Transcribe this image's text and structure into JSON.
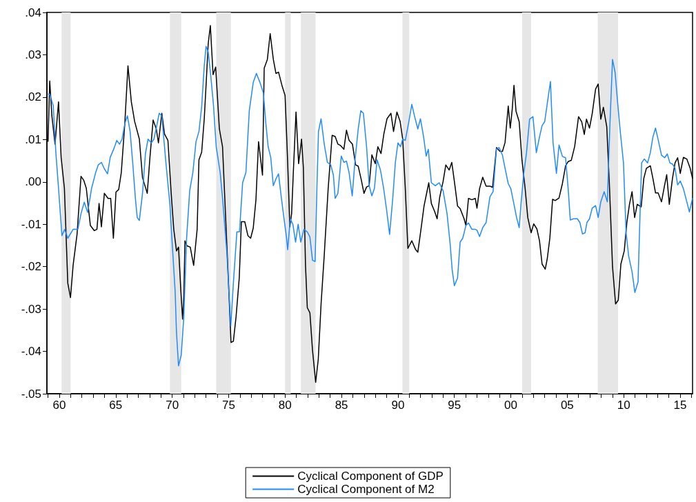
{
  "chart_data": {
    "type": "line",
    "legend": "bottom",
    "xlim": [
      1958.9,
      2016.1
    ],
    "xticks": [
      {
        "value": 1959,
        "label": null
      },
      {
        "value": 1960,
        "label": "60"
      },
      {
        "value": 1961,
        "label": null
      },
      {
        "value": 1962,
        "label": null
      },
      {
        "value": 1963,
        "label": null
      },
      {
        "value": 1964,
        "label": null
      },
      {
        "value": 1965,
        "label": "65"
      },
      {
        "value": 1966,
        "label": null
      },
      {
        "value": 1967,
        "label": null
      },
      {
        "value": 1968,
        "label": null
      },
      {
        "value": 1969,
        "label": null
      },
      {
        "value": 1970,
        "label": "70"
      },
      {
        "value": 1971,
        "label": null
      },
      {
        "value": 1972,
        "label": null
      },
      {
        "value": 1973,
        "label": null
      },
      {
        "value": 1974,
        "label": null
      },
      {
        "value": 1975,
        "label": "75"
      },
      {
        "value": 1976,
        "label": null
      },
      {
        "value": 1977,
        "label": null
      },
      {
        "value": 1978,
        "label": null
      },
      {
        "value": 1979,
        "label": null
      },
      {
        "value": 1980,
        "label": "80"
      },
      {
        "value": 1981,
        "label": null
      },
      {
        "value": 1982,
        "label": null
      },
      {
        "value": 1983,
        "label": null
      },
      {
        "value": 1984,
        "label": null
      },
      {
        "value": 1985,
        "label": "85"
      },
      {
        "value": 1986,
        "label": null
      },
      {
        "value": 1987,
        "label": null
      },
      {
        "value": 1988,
        "label": null
      },
      {
        "value": 1989,
        "label": null
      },
      {
        "value": 1990,
        "label": "90"
      },
      {
        "value": 1991,
        "label": null
      },
      {
        "value": 1992,
        "label": null
      },
      {
        "value": 1993,
        "label": null
      },
      {
        "value": 1994,
        "label": null
      },
      {
        "value": 1995,
        "label": "95"
      },
      {
        "value": 1996,
        "label": null
      },
      {
        "value": 1997,
        "label": null
      },
      {
        "value": 1998,
        "label": null
      },
      {
        "value": 1999,
        "label": null
      },
      {
        "value": 2000,
        "label": "00"
      },
      {
        "value": 2001,
        "label": null
      },
      {
        "value": 2002,
        "label": null
      },
      {
        "value": 2003,
        "label": null
      },
      {
        "value": 2004,
        "label": null
      },
      {
        "value": 2005,
        "label": "05"
      },
      {
        "value": 2006,
        "label": null
      },
      {
        "value": 2007,
        "label": null
      },
      {
        "value": 2008,
        "label": null
      },
      {
        "value": 2009,
        "label": null
      },
      {
        "value": 2010,
        "label": "10"
      },
      {
        "value": 2011,
        "label": null
      },
      {
        "value": 2012,
        "label": null
      },
      {
        "value": 2013,
        "label": null
      },
      {
        "value": 2014,
        "label": null
      },
      {
        "value": 2015,
        "label": "15"
      },
      {
        "value": 2016,
        "label": null
      }
    ],
    "ylim": [
      -0.05,
      0.04
    ],
    "yticks": [
      {
        "value": -0.05,
        "label": "-.05"
      },
      {
        "value": -0.04,
        "label": "-.04"
      },
      {
        "value": -0.03,
        "label": "-.03"
      },
      {
        "value": -0.02,
        "label": "-.02"
      },
      {
        "value": -0.01,
        "label": "-.01"
      },
      {
        "value": 0,
        "label": ".00"
      },
      {
        "value": 0.01,
        "label": ".01"
      },
      {
        "value": 0.02,
        "label": ".02"
      },
      {
        "value": 0.03,
        "label": ".03"
      },
      {
        "value": 0.04,
        "label": ".04"
      }
    ],
    "bands": [
      {
        "axis": "x",
        "from": 1960.2,
        "to": 1961.0,
        "color": "#e6e6e6"
      },
      {
        "axis": "x",
        "from": 1969.8,
        "to": 1970.8,
        "color": "#e6e6e6"
      },
      {
        "axis": "x",
        "from": 1973.9,
        "to": 1975.2,
        "color": "#e6e6e6"
      },
      {
        "axis": "x",
        "from": 1980.0,
        "to": 1980.5,
        "color": "#e6e6e6"
      },
      {
        "axis": "x",
        "from": 1981.4,
        "to": 1982.7,
        "color": "#e6e6e6"
      },
      {
        "axis": "x",
        "from": 1990.4,
        "to": 1991.0,
        "color": "#e6e6e6"
      },
      {
        "axis": "x",
        "from": 2001.0,
        "to": 2001.8,
        "color": "#e6e6e6"
      },
      {
        "axis": "x",
        "from": 2007.7,
        "to": 2009.5,
        "color": "#e6e6e6"
      }
    ],
    "series": [
      {
        "name": "Cyclical Component of GDP",
        "color": "#000000",
        "x": [
          1959.0,
          1959.15,
          1959.34,
          1959.62,
          1959.93,
          1960.16,
          1960.45,
          1960.75,
          1960.99,
          1961.22,
          1961.57,
          1961.92,
          1962.16,
          1962.39,
          1962.75,
          1963.1,
          1963.33,
          1963.52,
          1963.73,
          1963.99,
          1964.32,
          1964.55,
          1964.79,
          1965.02,
          1965.26,
          1965.49,
          1965.8,
          1966.08,
          1966.38,
          1966.67,
          1967.09,
          1967.37,
          1967.79,
          1968.03,
          1968.31,
          1968.59,
          1968.78,
          1969.08,
          1969.32,
          1969.62,
          1969.91,
          1970.14,
          1970.38,
          1970.56,
          1970.77,
          1970.92,
          1971.03,
          1971.13,
          1971.31,
          1971.6,
          1971.9,
          1972.21,
          1972.37,
          1972.61,
          1972.84,
          1973.0,
          1973.19,
          1973.38,
          1973.62,
          1973.85,
          1974.18,
          1974.46,
          1974.72,
          1974.98,
          1975.21,
          1975.42,
          1975.66,
          1975.94,
          1976.13,
          1976.43,
          1976.71,
          1976.95,
          1977.18,
          1977.42,
          1977.65,
          1978.0,
          1978.15,
          1978.43,
          1978.68,
          1978.96,
          1979.19,
          1979.42,
          1979.72,
          1980.0,
          1980.23,
          1980.42,
          1980.58,
          1980.74,
          1980.97,
          1981.2,
          1981.46,
          1981.62,
          1981.81,
          1981.97,
          1982.2,
          1982.43,
          1982.71,
          1982.94,
          1983.19,
          1983.47,
          1983.82,
          1984.17,
          1984.44,
          1984.68,
          1984.91,
          1985.21,
          1985.44,
          1985.67,
          1985.97,
          1986.25,
          1986.48,
          1986.76,
          1986.99,
          1987.22,
          1987.45,
          1987.69,
          1987.99,
          1988.22,
          1988.5,
          1988.75,
          1989.03,
          1989.38,
          1989.61,
          1989.91,
          1990.19,
          1990.42,
          1990.65,
          1990.88,
          1991.23,
          1991.57,
          1991.76,
          1992.04,
          1992.31,
          1992.73,
          1992.96,
          1993.24,
          1993.47,
          1993.7,
          1994.0,
          1994.24,
          1994.54,
          1994.77,
          1995.05,
          1995.28,
          1995.51,
          1995.86,
          1996.02,
          1996.25,
          1996.55,
          1996.85,
          1997.0,
          1997.23,
          1997.51,
          1997.81,
          1998.15,
          1998.38,
          1998.73,
          1999.03,
          1999.26,
          1999.49,
          1999.77,
          1999.95,
          2000.12,
          2000.28,
          2000.46,
          2000.74,
          2000.99,
          2001.27,
          2001.5,
          2001.8,
          2002.03,
          2002.31,
          2002.54,
          2002.77,
          2003.05,
          2003.23,
          2003.46,
          2003.7,
          2003.93,
          2004.27,
          2004.57,
          2004.85,
          2005.08,
          2005.36,
          2005.66,
          2006.0,
          2006.28,
          2006.51,
          2006.7,
          2006.97,
          2007.21,
          2007.51,
          2007.74,
          2007.97,
          2008.2,
          2008.5,
          2008.73,
          2009.01,
          2009.28,
          2009.52,
          2009.75,
          2010.05,
          2010.28,
          2010.51,
          2010.74,
          2010.97,
          2011.2,
          2011.55,
          2011.78,
          2012.01,
          2012.36,
          2012.59,
          2012.82,
          2013.05,
          2013.35,
          2013.63,
          2013.81,
          2014.04,
          2014.32,
          2014.55,
          2014.78,
          2015.01,
          2015.29,
          2015.59,
          2015.89,
          2016.1
        ],
        "values": [
          0.0095,
          0.0238,
          0.0156,
          0.0089,
          0.0189,
          0.0058,
          -0.0015,
          -0.0239,
          -0.0273,
          -0.0197,
          -0.0124,
          0.0013,
          0.0004,
          -0.0015,
          -0.0103,
          -0.0115,
          -0.0112,
          -0.0051,
          -0.0106,
          -0.0027,
          -0.0039,
          -0.0039,
          -0.0133,
          -0.0024,
          -0.0018,
          0.0022,
          0.0137,
          0.0274,
          0.0189,
          0.0143,
          0.0101,
          0.001,
          -0.0027,
          0.0058,
          0.0146,
          0.0125,
          0.0092,
          0.0162,
          0.0113,
          0.0098,
          -0.0027,
          -0.0112,
          -0.0163,
          -0.0154,
          -0.0258,
          -0.0324,
          -0.027,
          -0.0139,
          -0.0151,
          -0.0154,
          -0.0197,
          -0.0112,
          0.0052,
          0.007,
          0.0149,
          0.0228,
          0.0326,
          0.0369,
          0.0253,
          0.0271,
          0.0125,
          0.0083,
          -0.0075,
          -0.0233,
          -0.0379,
          -0.0376,
          -0.0318,
          -0.0227,
          -0.0094,
          -0.0094,
          -0.0127,
          -0.0133,
          -0.0109,
          -0.0042,
          0.0095,
          0.0016,
          0.0268,
          0.0289,
          0.035,
          0.0289,
          0.0256,
          0.0259,
          0.0228,
          0.0204,
          0.0046,
          -0.0106,
          -0.0075,
          0.0028,
          0.0165,
          0.0043,
          0.0101,
          0.0034,
          -0.0197,
          -0.0297,
          -0.0309,
          -0.0397,
          -0.0473,
          -0.0419,
          -0.0288,
          -0.0173,
          -0.0015,
          0.011,
          0.0107,
          0.0089,
          0.0086,
          0.0077,
          0.0122,
          0.0098,
          0.0089,
          0.004,
          0.0037,
          0.0004,
          -0.0027,
          -0.0012,
          -0.0009,
          0.0064,
          0.0043,
          0.0083,
          0.0067,
          0.0113,
          0.0149,
          0.0162,
          0.0119,
          0.0165,
          0.0143,
          0.0101,
          -0.0015,
          -0.0157,
          -0.0139,
          -0.016,
          -0.0166,
          -0.0112,
          -0.0057,
          -0.0002,
          -0.0051,
          -0.0069,
          -0.0087,
          -0.0036,
          0.0001,
          0.004,
          0.0028,
          0.0046,
          -0.0009,
          -0.0057,
          -0.0063,
          -0.0087,
          -0.0103,
          -0.0039,
          -0.0042,
          -0.0039,
          -0.0062,
          -0.0016,
          0.0011,
          -0.001,
          -0.001,
          -0.0013,
          0.0081,
          0.0072,
          0.0072,
          0.0093,
          0.0179,
          0.0127,
          0.017,
          0.0228,
          0.0167,
          0.0142,
          0.0051,
          -0.0016,
          -0.0084,
          -0.012,
          -0.0099,
          -0.0111,
          -0.0139,
          -0.0194,
          -0.0206,
          -0.0181,
          -0.0132,
          -0.0041,
          -0.0044,
          -0.0038,
          -0.0004,
          0.0038,
          0.0048,
          0.0051,
          0.0084,
          0.0154,
          0.0142,
          0.0112,
          0.0148,
          0.0127,
          0.0161,
          0.0219,
          0.0231,
          0.0148,
          0.0176,
          0.013,
          -0.0004,
          -0.02,
          -0.0288,
          -0.0279,
          -0.0194,
          -0.0163,
          -0.0096,
          -0.0053,
          -0.0023,
          -0.0084,
          -0.0053,
          -0.0059,
          0.0008,
          0.0032,
          0.0038,
          0.0008,
          -0.0026,
          -0.0026,
          -0.0047,
          -0.0007,
          0.0017,
          -0.0053,
          0.0008,
          0.0045,
          0.0057,
          0.002,
          0.0058,
          0.0054,
          0.0032,
          0.0008
        ]
      },
      {
        "name": "Cyclical Component of M2",
        "color": "#1f8bff",
        "x": [
          1959.0,
          1959.15,
          1959.46,
          1959.69,
          1959.93,
          1960.23,
          1960.47,
          1960.75,
          1961.22,
          1961.64,
          1961.92,
          1962.21,
          1962.51,
          1962.86,
          1963.22,
          1963.45,
          1963.73,
          1963.99,
          1964.27,
          1964.51,
          1964.86,
          1965.09,
          1965.33,
          1965.56,
          1965.8,
          1966.03,
          1966.27,
          1966.5,
          1966.74,
          1966.9,
          1967.09,
          1967.37,
          1967.63,
          1967.86,
          1968.15,
          1968.38,
          1968.62,
          1968.85,
          1969.08,
          1969.44,
          1969.79,
          1970.02,
          1970.26,
          1970.38,
          1970.56,
          1970.8,
          1971.03,
          1971.27,
          1971.55,
          1971.83,
          1972.11,
          1972.37,
          1972.61,
          1972.84,
          1973.0,
          1973.19,
          1973.43,
          1973.66,
          1973.9,
          1974.25,
          1974.48,
          1974.84,
          1975.02,
          1975.19,
          1975.42,
          1975.73,
          1975.96,
          1976.24,
          1976.53,
          1976.83,
          1977.18,
          1977.46,
          1977.77,
          1978.08,
          1978.3,
          1978.5,
          1978.73,
          1978.96,
          1979.19,
          1979.42,
          1979.65,
          1979.88,
          1980.12,
          1980.23,
          1980.46,
          1980.69,
          1980.93,
          1981.16,
          1981.39,
          1981.67,
          1981.97,
          1982.2,
          1982.43,
          1982.66,
          1982.82,
          1982.96,
          1983.19,
          1983.47,
          1983.75,
          1984.05,
          1984.28,
          1984.44,
          1984.68,
          1984.98,
          1985.21,
          1985.44,
          1985.67,
          1985.95,
          1986.2,
          1986.48,
          1986.71,
          1986.94,
          1987.22,
          1987.45,
          1987.69,
          1987.92,
          1988.15,
          1988.45,
          1988.73,
          1988.98,
          1989.26,
          1989.54,
          1989.77,
          1990.0,
          1990.23,
          1990.42,
          1990.65,
          1990.93,
          1991.23,
          1991.46,
          1991.76,
          1991.99,
          1992.27,
          1992.5,
          1992.69,
          1992.96,
          1993.31,
          1993.66,
          1994.0,
          1994.35,
          1994.63,
          1994.81,
          1995.0,
          1995.28,
          1995.51,
          1995.74,
          1996.02,
          1996.25,
          1996.55,
          1996.85,
          1997.0,
          1997.23,
          1997.51,
          1997.81,
          1998.15,
          1998.43,
          1998.73,
          1998.96,
          1999.26,
          1999.49,
          1999.77,
          2000.0,
          2000.28,
          2000.51,
          2000.74,
          2000.92,
          2001.15,
          2001.39,
          2001.66,
          2001.96,
          2002.26,
          2002.54,
          2002.77,
          2003.0,
          2003.23,
          2003.51,
          2003.74,
          2004.04,
          2004.27,
          2004.57,
          2004.85,
          2005.08,
          2005.27,
          2005.54,
          2005.89,
          2006.12,
          2006.35,
          2006.58,
          2006.74,
          2006.97,
          2007.21,
          2007.51,
          2007.74,
          2007.97,
          2008.27,
          2008.55,
          2008.78,
          2009.01,
          2009.24,
          2009.47,
          2009.7,
          2009.98,
          2010.21,
          2010.44,
          2010.74,
          2010.99,
          2011.27,
          2011.5,
          2011.59,
          2011.82,
          2012.12,
          2012.36,
          2012.59,
          2012.82,
          2013.05,
          2013.35,
          2013.63,
          2013.86,
          2014.09,
          2014.32,
          2014.55,
          2014.78,
          2015.01,
          2015.29,
          2015.59,
          2015.82,
          2016.1
        ],
        "values": [
          0.0207,
          0.0207,
          0.018,
          0.007,
          -0.0015,
          -0.0127,
          -0.0112,
          -0.0133,
          -0.0112,
          -0.0112,
          -0.0075,
          -0.0048,
          -0.0072,
          -0.0015,
          0.0022,
          0.004,
          0.0046,
          0.0031,
          0.0019,
          0.0058,
          0.008,
          0.0098,
          0.0089,
          0.0101,
          0.0137,
          0.0156,
          0.0119,
          0.0046,
          -0.0039,
          -0.0084,
          -0.0091,
          -0.0027,
          0.0067,
          0.0101,
          0.0092,
          0.0101,
          0.0131,
          0.0162,
          0.0156,
          0.0046,
          -0.0051,
          -0.0154,
          -0.0258,
          -0.0355,
          -0.0434,
          -0.0409,
          -0.0318,
          -0.0136,
          -0.0021,
          0.0022,
          0.0095,
          0.0119,
          0.0177,
          0.0274,
          0.032,
          0.0307,
          0.0247,
          0.018,
          0.0083,
          0.0022,
          -0.0045,
          -0.0166,
          -0.0258,
          -0.034,
          -0.0239,
          -0.0118,
          -0.0118,
          -0.0002,
          0.0022,
          0.0168,
          0.0235,
          0.0256,
          0.0235,
          0.021,
          0.0137,
          0.0083,
          0.0058,
          -0.0009,
          0.0007,
          0.0019,
          -0.0033,
          -0.0081,
          -0.013,
          -0.016,
          -0.0087,
          -0.01,
          -0.0142,
          -0.01,
          -0.0142,
          -0.0112,
          -0.0118,
          -0.013,
          -0.0185,
          -0.0188,
          -0.0015,
          0.0119,
          0.0149,
          0.0089,
          0.0046,
          0.004,
          0.0016,
          -0.0039,
          -0.0027,
          0.0061,
          0.0046,
          0.0049,
          0.0022,
          -0.0033,
          0.0052,
          0.0125,
          0.0168,
          0.0162,
          0.0083,
          -0.0009,
          -0.0033,
          -0.0015,
          0.0052,
          0.0028,
          -0.0015,
          -0.0063,
          -0.0124,
          -0.0039,
          0.0046,
          0.0092,
          0.0083,
          0.0101,
          0.0098,
          0.0137,
          0.0183,
          0.0156,
          0.0125,
          0.0149,
          0.0107,
          0.0061,
          0.0077,
          -0.0002,
          -0.0009,
          -0.0002,
          -0.0021,
          -0.0075,
          -0.0148,
          -0.0209,
          -0.0245,
          -0.0227,
          -0.0142,
          -0.0133,
          -0.0103,
          -0.0097,
          -0.0112,
          -0.0112,
          -0.0114,
          -0.0129,
          -0.0108,
          -0.0096,
          -0.0035,
          -0.0023,
          0.0078,
          0.0081,
          0.0063,
          0.0032,
          -0.0004,
          -0.0016,
          -0.0053,
          -0.0084,
          -0.0108,
          -0.0047,
          0.002,
          0.0069,
          0.0148,
          0.0154,
          0.0069,
          0.0106,
          0.0133,
          0.0142,
          0.0185,
          0.0237,
          0.0093,
          0.002,
          0.0087,
          0.006,
          0.0057,
          -0.0016,
          -0.009,
          -0.0087,
          -0.0087,
          -0.0096,
          -0.0123,
          -0.012,
          -0.0096,
          -0.0087,
          -0.0062,
          -0.0056,
          -0.0084,
          -0.0047,
          -0.0023,
          -0.0047,
          0.0136,
          0.0289,
          0.0258,
          0.0185,
          0.0118,
          0.0045,
          -0.012,
          -0.0175,
          -0.0212,
          -0.0261,
          -0.0236,
          -0.0029,
          0.0045,
          0.0054,
          0.0045,
          0.0069,
          0.0106,
          0.0127,
          0.01,
          0.0063,
          0.0057,
          0.0066,
          0.0045,
          0.0042,
          0.0032,
          -0.0007,
          0.0002,
          -0.0016,
          -0.0047,
          -0.0071,
          -0.0038
        ]
      }
    ]
  }
}
